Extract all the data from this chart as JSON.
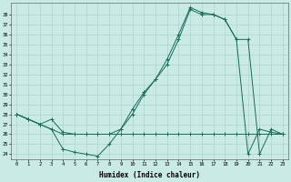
{
  "xlabel": "Humidex (Indice chaleur)",
  "bg_color": "#caeae5",
  "grid_color": "#aad4ce",
  "line_color": "#1a6b5a",
  "xlim": [
    -0.5,
    23.5
  ],
  "ylim": [
    23.5,
    39.2
  ],
  "xticks": [
    0,
    1,
    2,
    3,
    4,
    5,
    6,
    7,
    8,
    9,
    10,
    11,
    12,
    13,
    14,
    15,
    16,
    17,
    18,
    19,
    20,
    21,
    22,
    23
  ],
  "yticks": [
    24,
    25,
    26,
    27,
    28,
    29,
    30,
    31,
    32,
    33,
    34,
    35,
    36,
    37,
    38
  ],
  "series1_x": [
    0,
    1,
    2,
    3,
    4,
    5,
    6,
    7,
    8,
    9,
    10,
    11,
    12,
    13,
    14,
    15,
    16,
    17,
    18,
    19,
    20,
    21,
    22,
    23
  ],
  "series1_y": [
    28,
    27.5,
    27,
    26.5,
    24.5,
    24.2,
    24.0,
    23.8,
    25.0,
    26.5,
    28.5,
    30.2,
    31.5,
    33.5,
    36.0,
    38.7,
    38.2,
    38.0,
    37.5,
    35.5,
    24.0,
    26.5,
    26.2,
    26.0
  ],
  "series2_x": [
    0,
    1,
    2,
    3,
    4,
    5,
    6,
    7,
    8,
    9,
    10,
    11,
    12,
    13,
    14,
    15,
    16,
    17,
    18,
    19,
    20,
    21,
    22,
    23
  ],
  "series2_y": [
    28,
    27.5,
    27.0,
    27.5,
    26.2,
    26.0,
    26.0,
    26.0,
    26.0,
    26.5,
    28.0,
    30.0,
    31.5,
    33.0,
    35.5,
    38.5,
    38.0,
    38.0,
    37.5,
    35.5,
    35.5,
    24.0,
    26.5,
    26.0
  ],
  "series3_x": [
    0,
    1,
    2,
    3,
    4,
    5,
    6,
    7,
    8,
    9,
    10,
    11,
    12,
    13,
    14,
    15,
    16,
    17,
    18,
    19,
    20,
    21,
    22,
    23
  ],
  "series3_y": [
    28,
    27.5,
    27.0,
    26.5,
    26.0,
    26.0,
    26.0,
    26.0,
    26.0,
    26.0,
    26.0,
    26.0,
    26.0,
    26.0,
    26.0,
    26.0,
    26.0,
    26.0,
    26.0,
    26.0,
    26.0,
    26.0,
    26.0,
    26.0
  ]
}
